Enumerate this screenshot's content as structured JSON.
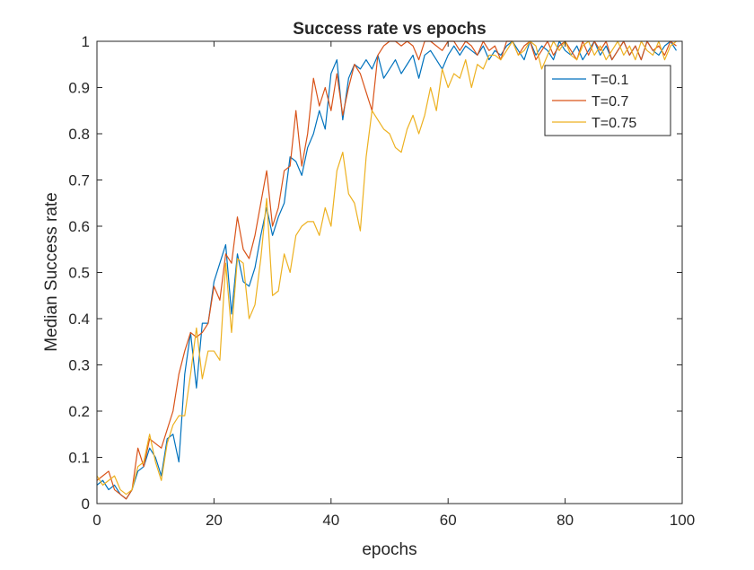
{
  "chart_data": {
    "type": "line",
    "title": "Success rate vs epochs",
    "xlabel": "epochs",
    "ylabel": "Median Success rate",
    "xlim": [
      0,
      100
    ],
    "ylim": [
      0,
      1
    ],
    "xticks": [
      0,
      20,
      40,
      60,
      80,
      100
    ],
    "yticks": [
      0,
      0.1,
      0.2,
      0.3,
      0.4,
      0.5,
      0.6,
      0.7,
      0.8,
      0.9,
      1
    ],
    "grid": false,
    "legend_position": "top-right",
    "x": [
      0,
      1,
      2,
      3,
      4,
      5,
      6,
      7,
      8,
      9,
      10,
      11,
      12,
      13,
      14,
      15,
      16,
      17,
      18,
      19,
      20,
      21,
      22,
      23,
      24,
      25,
      26,
      27,
      28,
      29,
      30,
      31,
      32,
      33,
      34,
      35,
      36,
      37,
      38,
      39,
      40,
      41,
      42,
      43,
      44,
      45,
      46,
      47,
      48,
      49,
      50,
      51,
      52,
      53,
      54,
      55,
      56,
      57,
      58,
      59,
      60,
      61,
      62,
      63,
      64,
      65,
      66,
      67,
      68,
      69,
      70,
      71,
      72,
      73,
      74,
      75,
      76,
      77,
      78,
      79,
      80,
      81,
      82,
      83,
      84,
      85,
      86,
      87,
      88,
      89,
      90,
      91,
      92,
      93,
      94,
      95,
      96,
      97,
      98,
      99
    ],
    "series": [
      {
        "name": "T=0.1",
        "color": "#0072BD",
        "values": [
          0.04,
          0.05,
          0.03,
          0.04,
          0.02,
          0.01,
          0.03,
          0.07,
          0.08,
          0.12,
          0.1,
          0.06,
          0.14,
          0.15,
          0.09,
          0.28,
          0.37,
          0.25,
          0.39,
          0.39,
          0.48,
          0.52,
          0.56,
          0.41,
          0.54,
          0.48,
          0.47,
          0.51,
          0.58,
          0.64,
          0.58,
          0.62,
          0.65,
          0.75,
          0.74,
          0.71,
          0.77,
          0.8,
          0.85,
          0.81,
          0.93,
          0.96,
          0.83,
          0.92,
          0.95,
          0.94,
          0.96,
          0.94,
          0.97,
          0.92,
          0.94,
          0.96,
          0.93,
          0.95,
          0.97,
          0.92,
          0.97,
          0.98,
          0.96,
          0.94,
          0.97,
          0.99,
          0.97,
          0.99,
          0.98,
          0.97,
          0.99,
          0.96,
          0.98,
          0.97,
          0.99,
          1.0,
          0.98,
          0.96,
          1.0,
          0.97,
          0.99,
          0.98,
          0.96,
          1.0,
          0.98,
          0.97,
          0.99,
          0.96,
          0.98,
          1.0,
          0.97,
          0.99,
          0.96,
          0.98,
          1.0,
          0.97,
          0.99,
          0.96,
          1.0,
          0.98,
          0.97,
          0.99,
          1.0,
          0.98
        ]
      },
      {
        "name": "T=0.7",
        "color": "#D95319",
        "values": [
          0.05,
          0.06,
          0.07,
          0.03,
          0.02,
          0.01,
          0.03,
          0.12,
          0.08,
          0.14,
          0.13,
          0.12,
          0.16,
          0.2,
          0.28,
          0.33,
          0.37,
          0.36,
          0.37,
          0.39,
          0.47,
          0.44,
          0.54,
          0.52,
          0.62,
          0.55,
          0.53,
          0.58,
          0.65,
          0.72,
          0.6,
          0.64,
          0.72,
          0.73,
          0.85,
          0.73,
          0.8,
          0.92,
          0.86,
          0.9,
          0.85,
          0.93,
          0.84,
          0.9,
          0.95,
          0.93,
          0.89,
          0.85,
          0.97,
          0.99,
          1.0,
          1.0,
          0.99,
          1.0,
          0.99,
          0.96,
          1.0,
          1.0,
          0.99,
          0.98,
          1.0,
          1.0,
          0.98,
          1.0,
          0.99,
          0.97,
          1.0,
          0.98,
          0.99,
          0.96,
          1.0,
          1.0,
          0.97,
          0.99,
          1.0,
          0.96,
          0.98,
          1.0,
          0.97,
          0.99,
          1.0,
          0.98,
          0.96,
          1.0,
          0.97,
          1.0,
          0.98,
          1.0,
          0.96,
          0.98,
          1.0,
          0.97,
          0.99,
          0.96,
          1.0,
          0.98,
          0.99,
          0.97,
          1.0,
          0.99
        ]
      },
      {
        "name": "T=0.75",
        "color": "#EDB120",
        "values": [
          0.06,
          0.04,
          0.05,
          0.06,
          0.03,
          0.02,
          0.03,
          0.08,
          0.09,
          0.15,
          0.09,
          0.05,
          0.13,
          0.17,
          0.19,
          0.19,
          0.28,
          0.38,
          0.27,
          0.33,
          0.33,
          0.31,
          0.52,
          0.37,
          0.53,
          0.52,
          0.4,
          0.43,
          0.53,
          0.66,
          0.45,
          0.46,
          0.54,
          0.5,
          0.58,
          0.6,
          0.61,
          0.61,
          0.58,
          0.64,
          0.6,
          0.72,
          0.76,
          0.67,
          0.65,
          0.59,
          0.75,
          0.85,
          0.83,
          0.81,
          0.8,
          0.77,
          0.76,
          0.81,
          0.84,
          0.8,
          0.84,
          0.9,
          0.85,
          0.94,
          0.9,
          0.93,
          0.92,
          0.96,
          0.9,
          0.95,
          0.94,
          0.97,
          0.97,
          0.96,
          0.98,
          1.0,
          0.97,
          0.98,
          1.0,
          0.99,
          0.94,
          0.97,
          1.0,
          0.98,
          1.0,
          0.97,
          0.96,
          0.99,
          1.0,
          0.97,
          0.99,
          0.96,
          0.98,
          1.0,
          0.97,
          0.99,
          0.96,
          1.0,
          0.98,
          0.97,
          1.0,
          0.96,
          0.99,
          1.0
        ]
      }
    ]
  }
}
